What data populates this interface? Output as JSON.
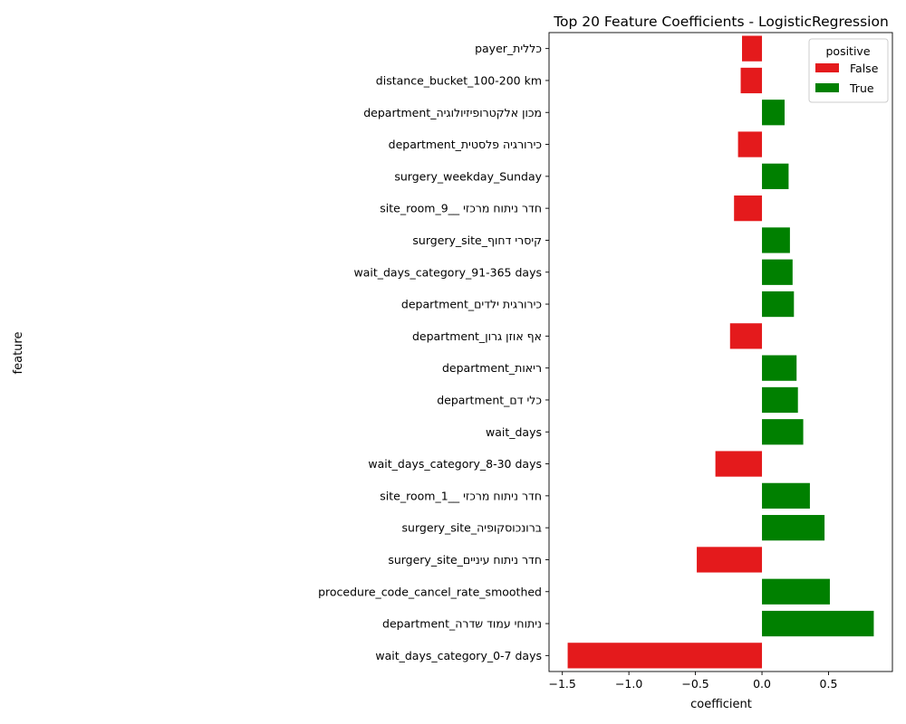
{
  "chart_data": {
    "type": "bar",
    "orientation": "horizontal",
    "title": "Top 20 Feature Coefficients - LogisticRegression",
    "xlabel": "coefficient",
    "ylabel": "feature",
    "xlim": [
      -1.6,
      0.98
    ],
    "xticks": [
      -1.5,
      -1.0,
      -0.5,
      0.0,
      0.5
    ],
    "xtick_labels": [
      "−1.5",
      "−1.0",
      "−0.5",
      "0.0",
      "0.5"
    ],
    "grid": false,
    "legend": {
      "title": "positive",
      "placement": "top-right",
      "entries": [
        {
          "label": "False",
          "color": "#e41a1c"
        },
        {
          "label": "True",
          "color": "#008000"
        }
      ]
    },
    "colors": {
      "False": "#e41a1c",
      "True": "#008000"
    },
    "bars": [
      {
        "feature": "payer_כללית",
        "value": -0.15,
        "positive": "False"
      },
      {
        "feature": "distance_bucket_100-200 km",
        "value": -0.16,
        "positive": "False"
      },
      {
        "feature": "department_מכון אלקטרופיזיולוגיה",
        "value": 0.17,
        "positive": "True"
      },
      {
        "feature": "department_כירורגיה פלסטית",
        "value": -0.18,
        "positive": "False"
      },
      {
        "feature": "surgery_weekday_Sunday",
        "value": 0.2,
        "positive": "True"
      },
      {
        "feature": "site_room_חדר ניתוח מרכזי __9",
        "value": -0.21,
        "positive": "False"
      },
      {
        "feature": "surgery_site_קיסרי דחוף",
        "value": 0.21,
        "positive": "True"
      },
      {
        "feature": "wait_days_category_91-365 days",
        "value": 0.23,
        "positive": "True"
      },
      {
        "feature": "department_כירורגית ילדים",
        "value": 0.24,
        "positive": "True"
      },
      {
        "feature": "department_אף אוזן גרון",
        "value": -0.24,
        "positive": "False"
      },
      {
        "feature": "department_ריאות",
        "value": 0.26,
        "positive": "True"
      },
      {
        "feature": "department_כלי דם",
        "value": 0.27,
        "positive": "True"
      },
      {
        "feature": "wait_days",
        "value": 0.31,
        "positive": "True"
      },
      {
        "feature": "wait_days_category_8-30 days",
        "value": -0.35,
        "positive": "False"
      },
      {
        "feature": "site_room_חדר ניתוח מרכזי __1",
        "value": 0.36,
        "positive": "True"
      },
      {
        "feature": "surgery_site_ברונכוסקופיה",
        "value": 0.47,
        "positive": "True"
      },
      {
        "feature": "surgery_site_חדר ניתוח עיניים",
        "value": -0.49,
        "positive": "False"
      },
      {
        "feature": "procedure_code_cancel_rate_smoothed",
        "value": 0.51,
        "positive": "True"
      },
      {
        "feature": "department_ניתוחי עמוד שדרה",
        "value": 0.84,
        "positive": "True"
      },
      {
        "feature": "wait_days_category_0-7 days",
        "value": -1.46,
        "positive": "False"
      }
    ]
  }
}
